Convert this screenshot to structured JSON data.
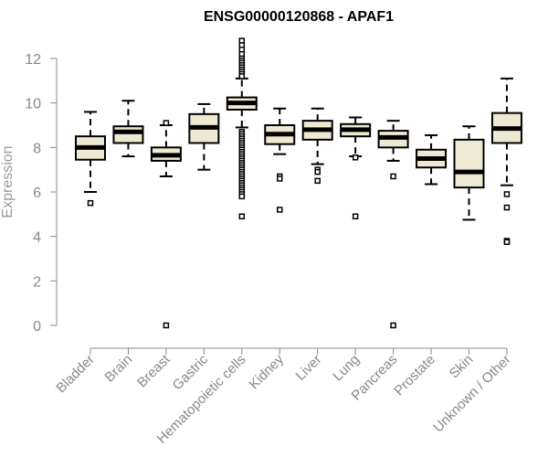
{
  "chart_data": {
    "type": "boxplot",
    "title": "ENSG00000120868 - APAF1",
    "xlabel": "",
    "ylabel": "Expression",
    "ylim": [
      0,
      12.5
    ],
    "yticks": [
      0,
      2,
      4,
      6,
      8,
      10,
      12
    ],
    "grid": false,
    "legend": "none",
    "categories": [
      "Bladder",
      "Brain",
      "Breast",
      "Gastric",
      "Hematopoietic cells",
      "Kidney",
      "Liver",
      "Lung",
      "Pancreas",
      "Prostate",
      "Skin",
      "Unknown / Other"
    ],
    "boxes": [
      {
        "category": "Bladder",
        "whisker_low": 6.0,
        "q1": 7.45,
        "median": 8.0,
        "q3": 8.5,
        "whisker_high": 9.6,
        "outliers": [
          5.5
        ]
      },
      {
        "category": "Brain",
        "whisker_low": 7.6,
        "q1": 8.2,
        "median": 8.7,
        "q3": 8.95,
        "whisker_high": 10.1,
        "outliers": []
      },
      {
        "category": "Breast",
        "whisker_low": 6.7,
        "q1": 7.4,
        "median": 7.65,
        "q3": 8.0,
        "whisker_high": 9.0,
        "outliers": [
          9.1,
          0.0
        ]
      },
      {
        "category": "Gastric",
        "whisker_low": 7.0,
        "q1": 8.2,
        "median": 8.9,
        "q3": 9.5,
        "whisker_high": 9.95,
        "outliers": []
      },
      {
        "category": "Hematopoietic cells",
        "whisker_low": 8.9,
        "q1": 9.7,
        "median": 10.0,
        "q3": 10.25,
        "whisker_high": 11.1,
        "outliers": [
          12.8,
          12.6,
          12.4,
          12.2,
          12.0,
          11.9,
          11.8,
          11.7,
          11.6,
          11.5,
          11.4,
          11.3,
          11.2,
          8.7,
          8.6,
          8.5,
          8.4,
          8.3,
          8.2,
          8.1,
          8.0,
          7.9,
          7.8,
          7.7,
          7.6,
          7.5,
          7.4,
          7.3,
          7.2,
          7.1,
          7.0,
          6.9,
          6.8,
          6.7,
          6.6,
          6.5,
          6.4,
          6.3,
          6.2,
          6.1,
          6.0,
          5.9,
          5.8,
          4.9
        ]
      },
      {
        "category": "Kidney",
        "whisker_low": 7.7,
        "q1": 8.15,
        "median": 8.6,
        "q3": 9.0,
        "whisker_high": 9.75,
        "outliers": [
          6.7,
          6.6,
          5.2
        ]
      },
      {
        "category": "Liver",
        "whisker_low": 7.25,
        "q1": 8.35,
        "median": 8.8,
        "q3": 9.2,
        "whisker_high": 9.75,
        "outliers": [
          7.0,
          6.9,
          6.5
        ]
      },
      {
        "category": "Lung",
        "whisker_low": 7.6,
        "q1": 8.5,
        "median": 8.8,
        "q3": 9.05,
        "whisker_high": 9.35,
        "outliers": [
          7.55,
          4.9
        ]
      },
      {
        "category": "Pancreas",
        "whisker_low": 7.4,
        "q1": 8.0,
        "median": 8.45,
        "q3": 8.75,
        "whisker_high": 9.2,
        "outliers": [
          6.7,
          0.0
        ]
      },
      {
        "category": "Prostate",
        "whisker_low": 6.35,
        "q1": 7.1,
        "median": 7.5,
        "q3": 7.9,
        "whisker_high": 8.55,
        "outliers": []
      },
      {
        "category": "Skin",
        "whisker_low": 4.75,
        "q1": 6.2,
        "median": 6.9,
        "q3": 8.35,
        "whisker_high": 8.95,
        "outliers": []
      },
      {
        "category": "Unknown / Other",
        "whisker_low": 6.3,
        "q1": 8.2,
        "median": 8.85,
        "q3": 9.55,
        "whisker_high": 11.1,
        "outliers": [
          5.9,
          5.3,
          3.8,
          3.75
        ]
      }
    ],
    "colors": {
      "box_fill": "#EEE9D2",
      "box_stroke": "#000000",
      "median": "#000000",
      "axis": "#888888",
      "tick_text": "#888888",
      "ylabel_text": "#999999"
    }
  }
}
